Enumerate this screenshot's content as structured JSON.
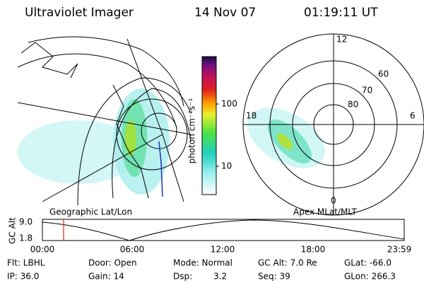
{
  "header": {
    "title": "Ultraviolet Imager",
    "date": "14 Nov 07",
    "time": "01:19:11 UT"
  },
  "colorbar": {
    "label": "photon cm⁻²s⁻¹",
    "ticks": [
      "100",
      "10"
    ]
  },
  "polar": {
    "labels": [
      "12",
      "60",
      "70",
      "80",
      "18",
      "6",
      "0"
    ]
  },
  "maps": {
    "left_caption": "Geographic Lat/Lon",
    "right_caption": "Apex MLat/MLT"
  },
  "timeline": {
    "ylabel": "GC Alt",
    "yticks": [
      "9.0",
      "1.8"
    ],
    "xticks": [
      "00:00",
      "06:00",
      "12:00",
      "18:00",
      "23:59"
    ]
  },
  "footer": {
    "row1": [
      "Flt: LBHL",
      "Door: Open",
      "Mode: Normal",
      "GC Alt: 7.0 Re",
      "GLat: -66.0"
    ],
    "row2": [
      "IP: 36.0",
      "Gain: 14",
      "Dsp:",
      "3.2",
      "Seq: 39",
      "GLon: 266.3"
    ]
  }
}
